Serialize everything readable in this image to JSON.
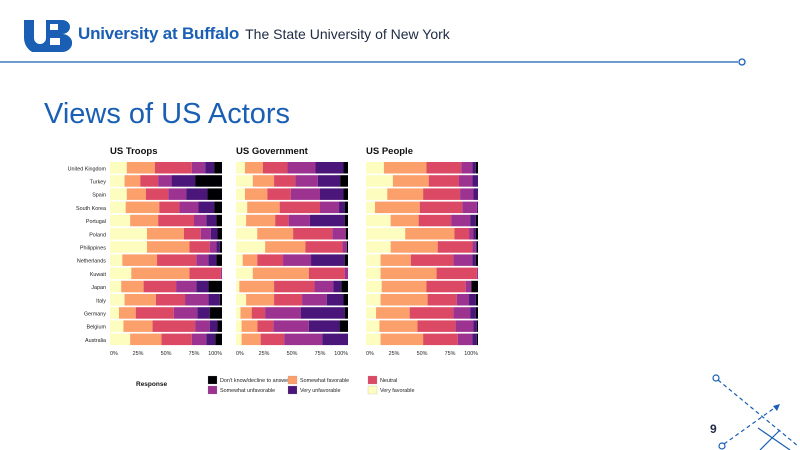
{
  "header": {
    "university_name": "University at Buffalo",
    "university_sub": "The State University of New York",
    "colors": {
      "brand_blue": "#1a5fb4",
      "dark": "#1f2a44"
    }
  },
  "slide": {
    "title": "Views of US Actors",
    "page_number": "9"
  },
  "chart_data": {
    "type": "bar",
    "orientation": "horizontal-stacked-percent",
    "categories": [
      "United Kingdom",
      "Turkey",
      "Spain",
      "South Korea",
      "Portugal",
      "Poland",
      "Philippines",
      "Netherlands",
      "Kuwait",
      "Japan",
      "Italy",
      "Germany",
      "Belgium",
      "Australia"
    ],
    "xlim": [
      0,
      100
    ],
    "x_tick_labels": [
      "0%",
      "25%",
      "50%",
      "75%",
      "100%"
    ],
    "legend": {
      "title": "Response",
      "items": [
        {
          "key": "very_favorable",
          "label": "Very favorable",
          "color": "#fcfdbf"
        },
        {
          "key": "somewhat_favorable",
          "label": "Somewhat favorable",
          "color": "#fb9f6b"
        },
        {
          "key": "neutral",
          "label": "Neutral",
          "color": "#dc4965"
        },
        {
          "key": "somewhat_unfavorable",
          "label": "Somewhat unfavorable",
          "color": "#9c3391"
        },
        {
          "key": "very_unfavorable",
          "label": "Very unfavorable",
          "color": "#4a167a"
        },
        {
          "key": "dont_know",
          "label": "Don't know/decline to answer",
          "color": "#000004"
        }
      ],
      "display_order": [
        "dont_know",
        "somewhat_unfavorable",
        "somewhat_favorable",
        "very_unfavorable",
        "neutral",
        "very_favorable"
      ]
    },
    "panels": [
      {
        "title": "US Troops",
        "rows": [
          [
            15,
            25,
            33,
            12,
            8,
            7
          ],
          [
            13,
            14,
            16,
            12,
            21,
            24
          ],
          [
            15,
            17,
            20,
            16,
            19,
            13
          ],
          [
            14,
            30,
            18,
            17,
            14,
            7
          ],
          [
            18,
            25,
            32,
            11,
            9,
            5
          ],
          [
            33,
            33,
            15,
            9,
            6,
            4
          ],
          [
            33,
            38,
            18,
            6,
            3,
            2
          ],
          [
            11,
            31,
            35,
            11,
            7,
            5
          ],
          [
            19,
            52,
            28,
            1,
            0,
            0
          ],
          [
            10,
            20,
            29,
            18,
            11,
            12
          ],
          [
            13,
            28,
            26,
            21,
            10,
            2
          ],
          [
            8,
            15,
            34,
            21,
            11,
            11
          ],
          [
            12,
            26,
            38,
            13,
            7,
            4
          ],
          [
            18,
            28,
            27,
            13,
            8,
            6
          ]
        ]
      },
      {
        "title": "US Government",
        "rows": [
          [
            8,
            16,
            22,
            25,
            25,
            4
          ],
          [
            15,
            19,
            19,
            20,
            20,
            7
          ],
          [
            8,
            20,
            21,
            26,
            21,
            4
          ],
          [
            10,
            29,
            36,
            17,
            5,
            3
          ],
          [
            9,
            26,
            12,
            19,
            31,
            3
          ],
          [
            19,
            32,
            35,
            12,
            0,
            2
          ],
          [
            26,
            36,
            33,
            4,
            0,
            1
          ],
          [
            6,
            13,
            23,
            25,
            30,
            3
          ],
          [
            15,
            50,
            32,
            3,
            0,
            0
          ],
          [
            3,
            31,
            36,
            17,
            7,
            6
          ],
          [
            9,
            25,
            25,
            22,
            15,
            4
          ],
          [
            4,
            10,
            12,
            32,
            39,
            3
          ],
          [
            6,
            17,
            17,
            38,
            33,
            9
          ],
          [
            5,
            17,
            21,
            34,
            23,
            0
          ]
        ]
      },
      {
        "title": "US People",
        "rows": [
          [
            16,
            38,
            31,
            10,
            3,
            2
          ],
          [
            24,
            32,
            27,
            12,
            5,
            0
          ],
          [
            19,
            32,
            33,
            12,
            4,
            0
          ],
          [
            8,
            40,
            38,
            13,
            1,
            0
          ],
          [
            22,
            25,
            29,
            17,
            5,
            2
          ],
          [
            35,
            44,
            13,
            4,
            2,
            2
          ],
          [
            22,
            42,
            31,
            3,
            1,
            1
          ],
          [
            13,
            27,
            38,
            17,
            3,
            2
          ],
          [
            13,
            50,
            36,
            1,
            0,
            0
          ],
          [
            14,
            40,
            35,
            5,
            0,
            6
          ],
          [
            13,
            42,
            26,
            11,
            6,
            2
          ],
          [
            9,
            30,
            39,
            15,
            5,
            2
          ],
          [
            12,
            34,
            34,
            16,
            3,
            1
          ],
          [
            13,
            38,
            31,
            13,
            4,
            1
          ]
        ]
      }
    ]
  }
}
